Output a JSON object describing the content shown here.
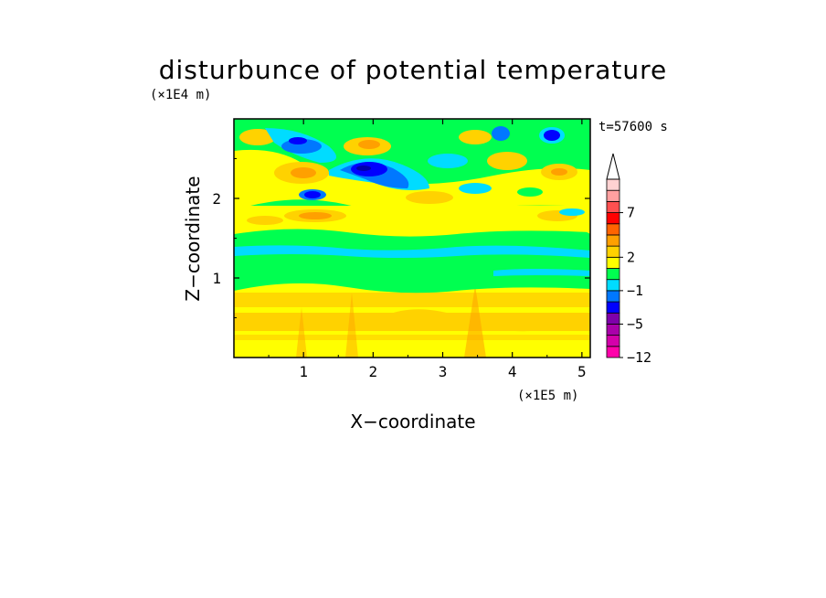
{
  "chart_data": {
    "type": "heatmap",
    "title": "disturbunce of potential temperature",
    "time_label": "t=57600 s",
    "xlabel": "X−coordinate",
    "ylabel": "Z−coordinate",
    "x_unit": "(×1E5 m)",
    "y_unit": "(×1E4 m)",
    "xlim": [
      0,
      5.12
    ],
    "ylim": [
      0,
      3.0
    ],
    "x_ticks": [
      "1",
      "2",
      "3",
      "4",
      "5"
    ],
    "y_ticks": [
      "1",
      "2"
    ],
    "colorbar": {
      "ticks": [
        "7",
        "2",
        "−1",
        "−5",
        "−12"
      ],
      "colors": [
        "#ff00aa",
        "#d400aa",
        "#aa00aa",
        "#7f00aa",
        "#0000ff",
        "#0078ff",
        "#00dcff",
        "#00ff50",
        "#ffff00",
        "#ffd200",
        "#ffa000",
        "#ff6400",
        "#ff0000",
        "#ff5050",
        "#ffa0a0",
        "#ffd2d2"
      ],
      "extend": "max"
    },
    "layers": [
      {
        "z_min": 0.0,
        "z_max": 0.18,
        "level": "2 to 3 (yellow)"
      },
      {
        "z_min": 0.18,
        "z_max": 0.9,
        "level": "2 to 3 (yellow/orange banded)"
      },
      {
        "z_min": 0.9,
        "z_max": 1.6,
        "level": "-1 to 1 (green)"
      },
      {
        "z_min": 1.6,
        "z_max": 2.0,
        "level": "1 to 3 (yellow/orange)"
      },
      {
        "z_min": 2.0,
        "z_max": 3.0,
        "level": "-5 to 4 (mixed blue/yellow/orange)"
      }
    ]
  }
}
